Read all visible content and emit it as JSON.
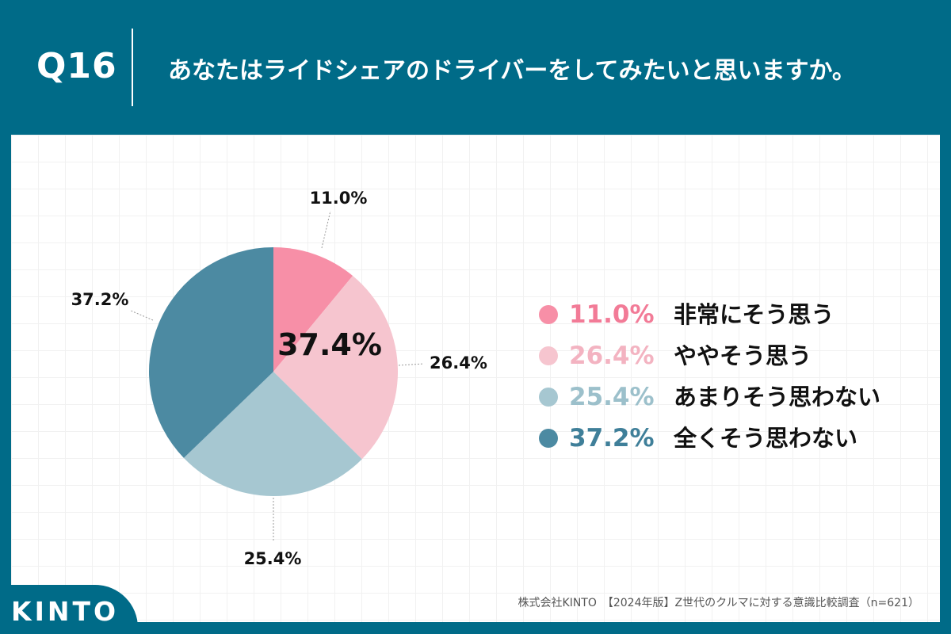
{
  "header": {
    "question_number": "Q16",
    "question_text": "あなたはライドシェアのドライバーをしてみたいと思いますか。"
  },
  "chart_data": {
    "type": "pie",
    "start": "12 o'clock, clockwise",
    "center_label": "37.4%",
    "slices": [
      {
        "label": "非常にそう思う",
        "value": 11.0,
        "display": "11.0%",
        "color": "#f78fa7",
        "text_color": "#f27b97"
      },
      {
        "label": "ややそう思う",
        "value": 26.4,
        "display": "26.4%",
        "color": "#f6c5cf",
        "text_color": "#f3b3c1"
      },
      {
        "label": "あまりそう思わない",
        "value": 25.4,
        "display": "25.4%",
        "color": "#a6c7d1",
        "text_color": "#9cc0cb"
      },
      {
        "label": "全くそう思わない",
        "value": 37.2,
        "display": "37.2%",
        "color": "#4c8aa2",
        "text_color": "#3f7f99"
      }
    ]
  },
  "footer": {
    "logo": "KINTO",
    "source": "株式会社KINTO　【2024年版】Z世代のクルマに対する意識比較調査（n=621）"
  }
}
